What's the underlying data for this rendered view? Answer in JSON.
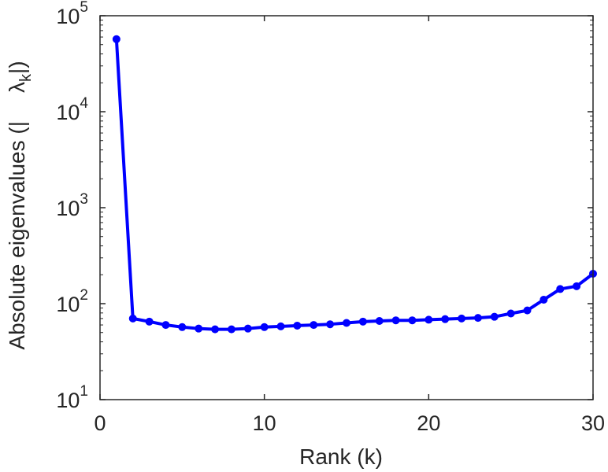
{
  "chart_data": {
    "type": "line",
    "xlabel": "Rank (k)",
    "ylabel_parts": {
      "prefix": "Absolute eigenvalues (|",
      "symbol": "λ",
      "subscript": "k",
      "suffix": "|)"
    },
    "xlim": [
      0,
      30
    ],
    "ylim": [
      10,
      100000
    ],
    "yscale": "log",
    "grid": false,
    "legend": "none",
    "x_ticks": [
      0,
      10,
      20,
      30
    ],
    "x_tick_labels": [
      "0",
      "10",
      "20",
      "30"
    ],
    "y_ticks": [
      10,
      100,
      1000,
      10000,
      100000
    ],
    "y_tick_labels": [
      {
        "base": "10",
        "exp": "1"
      },
      {
        "base": "10",
        "exp": "2"
      },
      {
        "base": "10",
        "exp": "3"
      },
      {
        "base": "10",
        "exp": "4"
      },
      {
        "base": "10",
        "exp": "5"
      }
    ],
    "series": [
      {
        "color": "#0000ff",
        "marker": "circle",
        "x": [
          1,
          2,
          3,
          4,
          5,
          6,
          7,
          8,
          9,
          10,
          11,
          12,
          13,
          14,
          15,
          16,
          17,
          18,
          19,
          20,
          21,
          22,
          23,
          24,
          25,
          26,
          27,
          28,
          29,
          30
        ],
        "y": [
          57000,
          70,
          65,
          60,
          57,
          55,
          54,
          54,
          55,
          57,
          58,
          59,
          60,
          61,
          63,
          65,
          66,
          67,
          67,
          68,
          69,
          70,
          71,
          73,
          79,
          85,
          110,
          142,
          152,
          205
        ]
      }
    ]
  }
}
